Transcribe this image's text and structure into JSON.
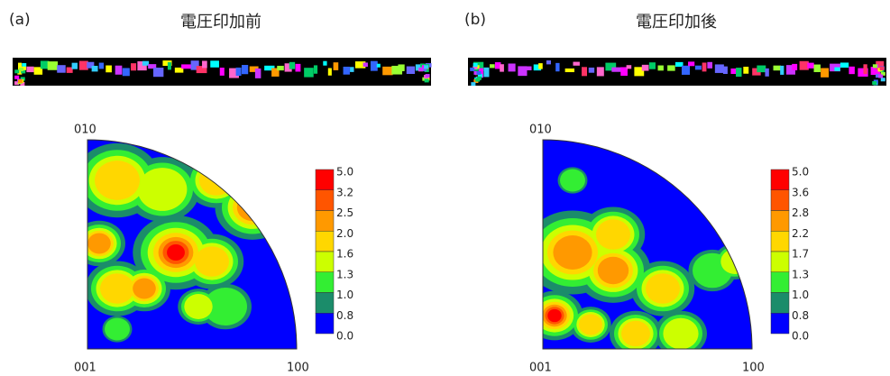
{
  "panels": [
    {
      "label": "(a)",
      "title": "電圧印加前",
      "corner_labels": {
        "top": "010",
        "bottom_left": "001",
        "bottom_right": "100"
      },
      "legend": [
        "5.0",
        "3.2",
        "2.5",
        "2.0",
        "1.6",
        "1.3",
        "1.0",
        "0.8",
        "0.0"
      ]
    },
    {
      "label": "(b)",
      "title": "電圧印加後",
      "corner_labels": {
        "top": "010",
        "bottom_left": "001",
        "bottom_right": "100"
      },
      "legend": [
        "5.0",
        "3.6",
        "2.8",
        "2.2",
        "1.7",
        "1.3",
        "1.0",
        "0.8",
        "0.0"
      ]
    }
  ]
}
